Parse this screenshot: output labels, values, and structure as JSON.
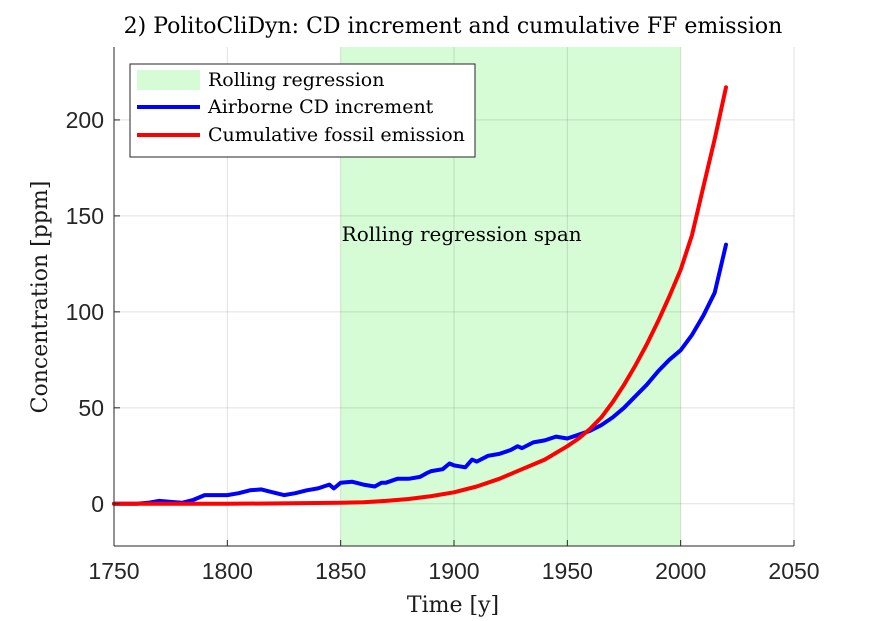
{
  "chart_data": {
    "type": "line",
    "title": "2) PolitoCliDyn: CD increment and cumulative FF emission",
    "xlabel": "Time [y]",
    "ylabel": "Concentration [ppm]",
    "xlim": [
      1750,
      2050
    ],
    "ylim": [
      -22,
      238
    ],
    "xticks": [
      1750,
      1800,
      1850,
      1900,
      1950,
      2000,
      2050
    ],
    "yticks": [
      0,
      50,
      100,
      150,
      200
    ],
    "grid": true,
    "legend_position": "top-left",
    "shaded_region": {
      "name": "Rolling regression",
      "x_start": 1850,
      "x_end": 2000,
      "color": "#d6fcd6",
      "annotation": "Rolling regression span",
      "annotation_x": 1850,
      "annotation_y": 137
    },
    "series": [
      {
        "name": "Airborne CD increment",
        "color": "#0000ff",
        "x": [
          1750,
          1760,
          1765,
          1770,
          1775,
          1780,
          1785,
          1790,
          1795,
          1800,
          1805,
          1810,
          1815,
          1820,
          1825,
          1830,
          1835,
          1840,
          1845,
          1847,
          1850,
          1855,
          1860,
          1865,
          1868,
          1870,
          1875,
          1880,
          1885,
          1888,
          1890,
          1895,
          1898,
          1900,
          1905,
          1908,
          1910,
          1915,
          1920,
          1925,
          1928,
          1930,
          1935,
          1940,
          1945,
          1950,
          1955,
          1960,
          1965,
          1970,
          1975,
          1980,
          1985,
          1990,
          1995,
          2000,
          2005,
          2010,
          2015,
          2020
        ],
        "y": [
          0,
          0,
          0.5,
          1.5,
          1,
          0.5,
          2,
          4.5,
          4.5,
          4.5,
          5.5,
          7,
          7.5,
          6,
          4.5,
          5.5,
          7,
          8,
          10,
          8,
          11,
          11.5,
          10,
          9,
          11,
          11,
          13,
          13,
          14,
          16,
          17,
          18,
          21,
          20,
          19,
          23,
          22,
          25,
          26,
          28,
          30,
          29,
          32,
          33,
          35,
          34,
          36,
          38,
          41,
          45,
          50,
          56,
          62,
          69,
          75,
          80,
          88,
          98,
          110,
          135
        ]
      },
      {
        "name": "Cumulative fossil emission",
        "color": "#ff0000",
        "x": [
          1750,
          1800,
          1850,
          1860,
          1870,
          1880,
          1890,
          1900,
          1910,
          1920,
          1930,
          1940,
          1950,
          1955,
          1960,
          1965,
          1970,
          1975,
          1980,
          1985,
          1990,
          1995,
          2000,
          2005,
          2010,
          2015,
          2020
        ],
        "y": [
          0,
          0,
          0.5,
          0.8,
          1.5,
          2.5,
          4,
          6,
          9,
          13,
          18,
          23,
          30,
          34,
          39,
          45,
          53,
          62,
          72,
          83,
          95,
          108,
          122,
          140,
          165,
          190,
          217
        ]
      }
    ]
  }
}
